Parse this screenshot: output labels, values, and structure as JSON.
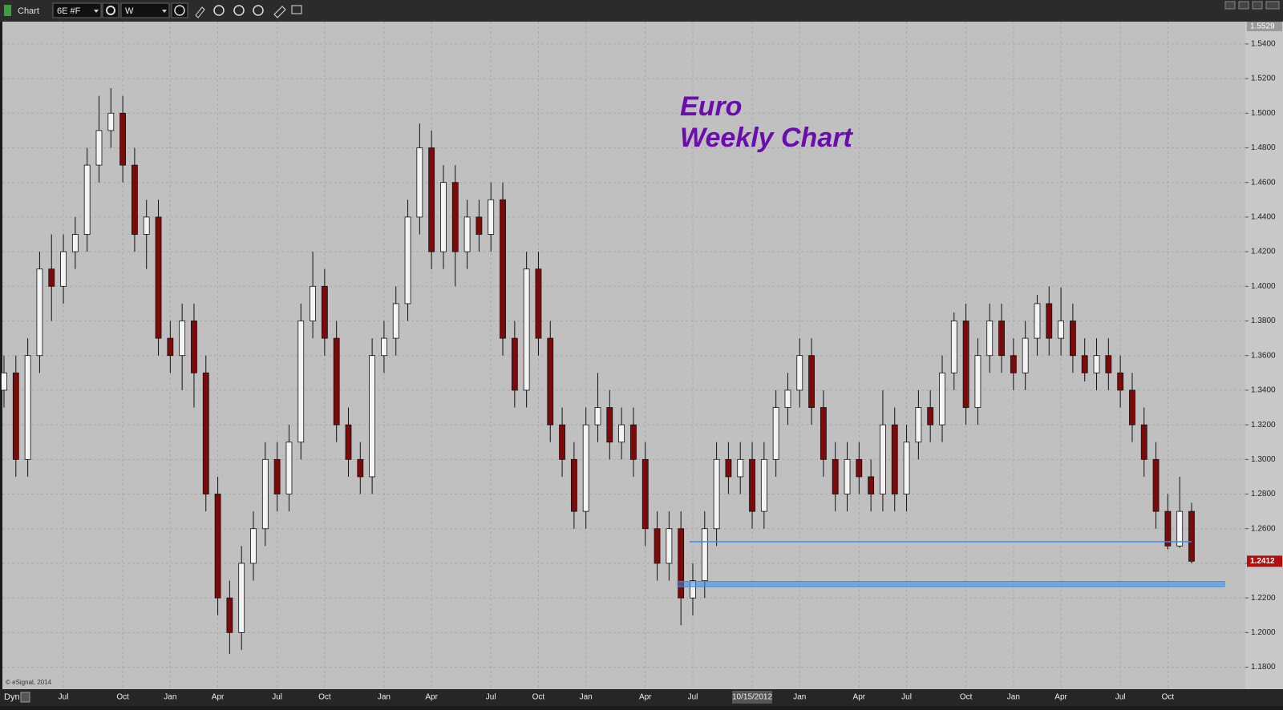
{
  "chart_data": {
    "type": "candlestick",
    "window_title": "Chart",
    "symbol": "6E #F",
    "interval": "W",
    "mode": "Dyn",
    "footer": "© eSignal, 2014",
    "title": [
      "Euro",
      "Weekly Chart"
    ],
    "categories": [
      null,
      null,
      null,
      null,
      null,
      "Jul",
      null,
      null,
      null,
      null,
      "Oct",
      null,
      null,
      null,
      "Jan",
      null,
      null,
      null,
      "Apr",
      null,
      null,
      null,
      null,
      "Jul",
      null,
      null,
      null,
      "Oct",
      null,
      null,
      null,
      null,
      "Jan",
      null,
      null,
      null,
      "Apr",
      null,
      null,
      null,
      null,
      "Jul",
      null,
      null,
      null,
      "Oct",
      null,
      null,
      null,
      "Jan",
      null,
      null,
      null,
      null,
      "Apr",
      null,
      null,
      null,
      "Jul",
      null,
      null,
      null,
      null,
      "10/15/2012",
      null,
      null,
      null,
      "Jan",
      null,
      null,
      null,
      null,
      "Apr",
      null,
      null,
      null,
      "Jul",
      null,
      null,
      null,
      null,
      "Oct",
      null,
      null,
      null,
      "Jan",
      null,
      null,
      null,
      "Apr",
      null,
      null,
      null,
      null,
      "Jul",
      null,
      null,
      null,
      "Oct",
      null,
      null
    ],
    "ohlc": [
      [
        1.34,
        1.36,
        1.33,
        1.35
      ],
      [
        1.35,
        1.36,
        1.29,
        1.3
      ],
      [
        1.3,
        1.37,
        1.29,
        1.36
      ],
      [
        1.36,
        1.42,
        1.35,
        1.41
      ],
      [
        1.41,
        1.43,
        1.38,
        1.4
      ],
      [
        1.4,
        1.43,
        1.39,
        1.42
      ],
      [
        1.42,
        1.44,
        1.41,
        1.43
      ],
      [
        1.43,
        1.48,
        1.42,
        1.47
      ],
      [
        1.47,
        1.51,
        1.46,
        1.49
      ],
      [
        1.49,
        1.5145,
        1.48,
        1.5
      ],
      [
        1.5,
        1.51,
        1.46,
        1.47
      ],
      [
        1.47,
        1.48,
        1.42,
        1.43
      ],
      [
        1.43,
        1.45,
        1.41,
        1.44
      ],
      [
        1.44,
        1.45,
        1.36,
        1.37
      ],
      [
        1.37,
        1.38,
        1.35,
        1.36
      ],
      [
        1.36,
        1.39,
        1.34,
        1.38
      ],
      [
        1.38,
        1.39,
        1.33,
        1.35
      ],
      [
        1.35,
        1.36,
        1.27,
        1.28
      ],
      [
        1.28,
        1.29,
        1.21,
        1.22
      ],
      [
        1.22,
        1.23,
        1.1876,
        1.2
      ],
      [
        1.2,
        1.25,
        1.19,
        1.24
      ],
      [
        1.24,
        1.27,
        1.23,
        1.26
      ],
      [
        1.26,
        1.31,
        1.25,
        1.3
      ],
      [
        1.3,
        1.31,
        1.27,
        1.28
      ],
      [
        1.28,
        1.32,
        1.27,
        1.31
      ],
      [
        1.31,
        1.39,
        1.3,
        1.38
      ],
      [
        1.38,
        1.42,
        1.37,
        1.4
      ],
      [
        1.4,
        1.41,
        1.36,
        1.37
      ],
      [
        1.37,
        1.38,
        1.31,
        1.32
      ],
      [
        1.32,
        1.33,
        1.29,
        1.3
      ],
      [
        1.3,
        1.31,
        1.28,
        1.29
      ],
      [
        1.29,
        1.37,
        1.28,
        1.36
      ],
      [
        1.36,
        1.38,
        1.35,
        1.37
      ],
      [
        1.37,
        1.4,
        1.36,
        1.39
      ],
      [
        1.39,
        1.45,
        1.38,
        1.44
      ],
      [
        1.44,
        1.494,
        1.43,
        1.48
      ],
      [
        1.48,
        1.49,
        1.41,
        1.42
      ],
      [
        1.42,
        1.47,
        1.41,
        1.46
      ],
      [
        1.46,
        1.47,
        1.4,
        1.42
      ],
      [
        1.42,
        1.45,
        1.41,
        1.44
      ],
      [
        1.44,
        1.45,
        1.42,
        1.43
      ],
      [
        1.43,
        1.46,
        1.42,
        1.45
      ],
      [
        1.45,
        1.46,
        1.36,
        1.37
      ],
      [
        1.37,
        1.38,
        1.33,
        1.34
      ],
      [
        1.34,
        1.42,
        1.33,
        1.41
      ],
      [
        1.41,
        1.42,
        1.36,
        1.37
      ],
      [
        1.37,
        1.38,
        1.31,
        1.32
      ],
      [
        1.32,
        1.33,
        1.29,
        1.3
      ],
      [
        1.3,
        1.31,
        1.26,
        1.27
      ],
      [
        1.27,
        1.33,
        1.26,
        1.32
      ],
      [
        1.32,
        1.35,
        1.31,
        1.33
      ],
      [
        1.33,
        1.34,
        1.3,
        1.31
      ],
      [
        1.31,
        1.33,
        1.3,
        1.32
      ],
      [
        1.32,
        1.33,
        1.29,
        1.3
      ],
      [
        1.3,
        1.31,
        1.25,
        1.26
      ],
      [
        1.26,
        1.27,
        1.23,
        1.24
      ],
      [
        1.24,
        1.27,
        1.23,
        1.26
      ],
      [
        1.26,
        1.27,
        1.2042,
        1.22
      ],
      [
        1.22,
        1.24,
        1.21,
        1.23
      ],
      [
        1.23,
        1.27,
        1.22,
        1.26
      ],
      [
        1.26,
        1.31,
        1.25,
        1.3
      ],
      [
        1.3,
        1.31,
        1.28,
        1.29
      ],
      [
        1.29,
        1.31,
        1.28,
        1.3
      ],
      [
        1.3,
        1.31,
        1.26,
        1.27
      ],
      [
        1.27,
        1.31,
        1.26,
        1.3
      ],
      [
        1.3,
        1.34,
        1.29,
        1.33
      ],
      [
        1.33,
        1.35,
        1.32,
        1.34
      ],
      [
        1.34,
        1.37,
        1.33,
        1.36
      ],
      [
        1.36,
        1.37,
        1.32,
        1.33
      ],
      [
        1.33,
        1.34,
        1.29,
        1.3
      ],
      [
        1.3,
        1.31,
        1.27,
        1.28
      ],
      [
        1.28,
        1.31,
        1.27,
        1.3
      ],
      [
        1.3,
        1.31,
        1.28,
        1.29
      ],
      [
        1.29,
        1.3,
        1.27,
        1.28
      ],
      [
        1.28,
        1.34,
        1.27,
        1.32
      ],
      [
        1.32,
        1.33,
        1.27,
        1.28
      ],
      [
        1.28,
        1.32,
        1.27,
        1.31
      ],
      [
        1.31,
        1.34,
        1.3,
        1.33
      ],
      [
        1.33,
        1.34,
        1.31,
        1.32
      ],
      [
        1.32,
        1.36,
        1.31,
        1.35
      ],
      [
        1.35,
        1.385,
        1.34,
        1.38
      ],
      [
        1.38,
        1.39,
        1.32,
        1.33
      ],
      [
        1.33,
        1.37,
        1.32,
        1.36
      ],
      [
        1.36,
        1.39,
        1.35,
        1.38
      ],
      [
        1.38,
        1.39,
        1.35,
        1.36
      ],
      [
        1.36,
        1.37,
        1.34,
        1.35
      ],
      [
        1.35,
        1.38,
        1.34,
        1.37
      ],
      [
        1.37,
        1.395,
        1.36,
        1.39
      ],
      [
        1.39,
        1.4,
        1.36,
        1.37
      ],
      [
        1.37,
        1.3993,
        1.36,
        1.38
      ],
      [
        1.38,
        1.39,
        1.35,
        1.36
      ],
      [
        1.36,
        1.37,
        1.345,
        1.35
      ],
      [
        1.35,
        1.37,
        1.34,
        1.36
      ],
      [
        1.36,
        1.37,
        1.34,
        1.35
      ],
      [
        1.35,
        1.36,
        1.33,
        1.34
      ],
      [
        1.34,
        1.35,
        1.31,
        1.32
      ],
      [
        1.32,
        1.33,
        1.29,
        1.3
      ],
      [
        1.3,
        1.31,
        1.26,
        1.27
      ],
      [
        1.27,
        1.28,
        1.248,
        1.25
      ],
      [
        1.25,
        1.29,
        1.249,
        1.27
      ],
      [
        1.27,
        1.275,
        1.24,
        1.2412
      ]
    ],
    "up_color": "#f4f4f4",
    "down_color": "#7d0a0a",
    "ylim": [
      1.1673,
      1.5529
    ],
    "yticks": [
      {
        "value": 1.18,
        "label": "1.1800"
      },
      {
        "value": 1.2,
        "label": "1.2000"
      },
      {
        "value": 1.22,
        "label": "1.2200"
      },
      {
        "value": 1.24,
        "label": "1.2400"
      },
      {
        "value": 1.26,
        "label": "1.2600"
      },
      {
        "value": 1.28,
        "label": "1.2800"
      },
      {
        "value": 1.3,
        "label": "1.3000"
      },
      {
        "value": 1.32,
        "label": "1.3200"
      },
      {
        "value": 1.34,
        "label": "1.3400"
      },
      {
        "value": 1.36,
        "label": "1.3600"
      },
      {
        "value": 1.38,
        "label": "1.3800"
      },
      {
        "value": 1.4,
        "label": "1.4000"
      },
      {
        "value": 1.42,
        "label": "1.4200"
      },
      {
        "value": 1.44,
        "label": "1.4400"
      },
      {
        "value": 1.46,
        "label": "1.4600"
      },
      {
        "value": 1.48,
        "label": "1.4800"
      },
      {
        "value": 1.5,
        "label": "1.5000"
      },
      {
        "value": 1.52,
        "label": "1.5200"
      },
      {
        "value": 1.54,
        "label": "1.5400"
      }
    ],
    "grid": true,
    "top_price": 1.5529,
    "support_line": 1.2525,
    "support_band": [
      1.2265,
      1.2295
    ],
    "support_color": "#3a8ee6"
  }
}
